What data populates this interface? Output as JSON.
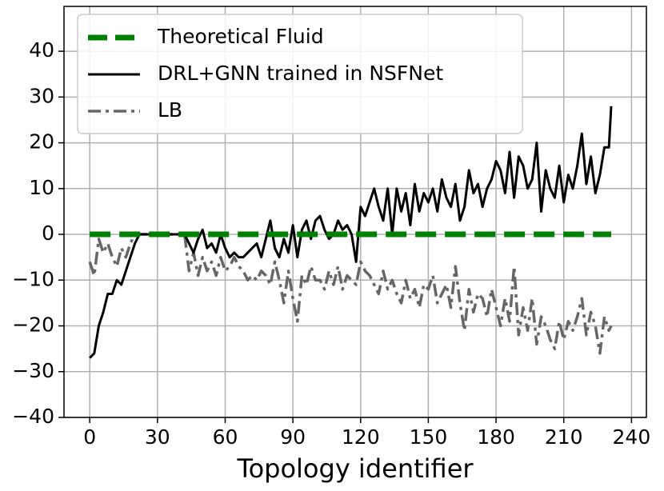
{
  "chart_data": {
    "type": "line",
    "x_label": "Topology identifier",
    "x": [
      0,
      2,
      4,
      6,
      8,
      10,
      12,
      14,
      16,
      18,
      20,
      22,
      24,
      26,
      28,
      30,
      32,
      34,
      36,
      38,
      40,
      42,
      44,
      46,
      48,
      50,
      52,
      54,
      56,
      58,
      60,
      62,
      64,
      66,
      68,
      70,
      72,
      74,
      76,
      78,
      80,
      82,
      84,
      86,
      88,
      90,
      92,
      94,
      96,
      98,
      100,
      102,
      104,
      106,
      108,
      110,
      112,
      114,
      116,
      118,
      120,
      122,
      124,
      126,
      128,
      130,
      132,
      134,
      136,
      138,
      140,
      142,
      144,
      146,
      148,
      150,
      152,
      154,
      156,
      158,
      160,
      162,
      164,
      166,
      168,
      170,
      172,
      174,
      176,
      178,
      180,
      182,
      184,
      186,
      188,
      190,
      192,
      194,
      196,
      198,
      200,
      202,
      204,
      206,
      208,
      210,
      212,
      214,
      216,
      218,
      220,
      222,
      224,
      226,
      228,
      230,
      231
    ],
    "series": [
      {
        "name": "Theoretical Fluid",
        "color": "#008000",
        "dash": "dashed",
        "x": [
          0,
          231
        ],
        "values": [
          0,
          0
        ]
      },
      {
        "name": "DRL+GNN trained in NSFNet",
        "color": "#000000",
        "dash": "solid",
        "values": [
          -27,
          -26,
          -20,
          -17,
          -13,
          -13,
          -10,
          -11,
          -8,
          -5,
          -2,
          0,
          0,
          0,
          0,
          0,
          0,
          0,
          0,
          0,
          0,
          0,
          -2,
          -4,
          -1,
          1,
          -3,
          -2,
          -4,
          0,
          -3,
          -5,
          -4,
          -5,
          -5,
          -4,
          -3,
          -2,
          -5,
          -1,
          3,
          -3,
          -5,
          -1,
          -4,
          2,
          -5,
          1,
          3,
          -1,
          3,
          4,
          1,
          -1,
          0,
          3,
          1,
          2,
          0,
          -6,
          6,
          4,
          7,
          10,
          6,
          3,
          10,
          0,
          10,
          5,
          9,
          2,
          11,
          5,
          9,
          7,
          10,
          5,
          12,
          8,
          6,
          11,
          3,
          6,
          14,
          9,
          11,
          6,
          10,
          12,
          16,
          14,
          9,
          18,
          8,
          17,
          15,
          10,
          12,
          20,
          5,
          14,
          10,
          8,
          15,
          7,
          13,
          10,
          15,
          22,
          11,
          17,
          9,
          13,
          19,
          19,
          28
        ]
      },
      {
        "name": "LB",
        "color": "#666666",
        "dash": "dashdot",
        "values": [
          -6,
          -9,
          -1,
          -4,
          -2,
          -5,
          -7,
          -3,
          -5,
          -2,
          0,
          0,
          0,
          0,
          0,
          0,
          0,
          0,
          0,
          0,
          0,
          0,
          -8,
          -4,
          -9,
          -5,
          -8,
          -6,
          -9,
          -5,
          -8,
          -7,
          -5,
          -7,
          -8,
          -10,
          -9,
          -10,
          -8,
          -9,
          -11,
          -6,
          -10,
          -15,
          -8,
          -14,
          -19,
          -9,
          -11,
          -7,
          -10,
          -10,
          -12,
          -8,
          -11,
          -7,
          -12,
          -9,
          -10,
          -11,
          -6,
          -8,
          -9,
          -11,
          -13,
          -8,
          -12,
          -10,
          -13,
          -15,
          -10,
          -14,
          -12,
          -16,
          -11,
          -12,
          -9,
          -15,
          -13,
          -11,
          -16,
          -7,
          -15,
          -21,
          -12,
          -17,
          -13,
          -14,
          -18,
          -12,
          -16,
          -20,
          -14,
          -19,
          -7,
          -22,
          -16,
          -21,
          -14,
          -24,
          -18,
          -20,
          -23,
          -25,
          -19,
          -23,
          -19,
          -21,
          -18,
          -14,
          -22,
          -17,
          -20,
          -26,
          -18,
          -21,
          -20
        ]
      }
    ],
    "xlim": [
      -11.4,
      246.6
    ],
    "ylim": [
      -40,
      49.8
    ],
    "xticks": [
      0,
      30,
      60,
      90,
      120,
      150,
      180,
      210,
      240
    ],
    "yticks": [
      {
        "value": -40,
        "label": "−40"
      },
      {
        "value": -30,
        "label": "−30"
      },
      {
        "value": -20,
        "label": "−20"
      },
      {
        "value": -10,
        "label": "−10"
      },
      0,
      10,
      20,
      30,
      40
    ],
    "grid": true,
    "legend": "upper left"
  }
}
